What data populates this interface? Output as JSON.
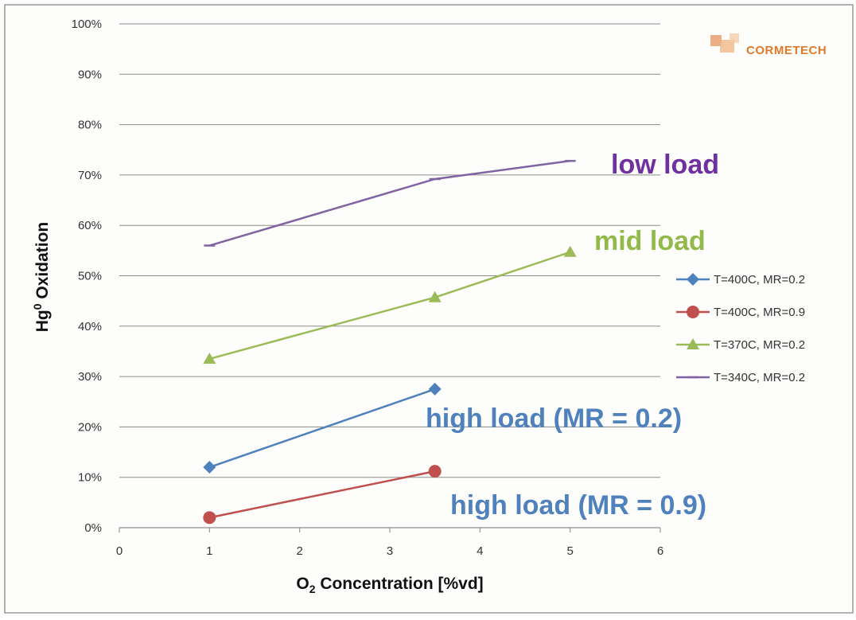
{
  "logo": {
    "text": "CORMETECH",
    "color": "#e07a2a"
  },
  "chart_data": {
    "type": "line",
    "title": "",
    "xlabel": {
      "prefix": "O",
      "sub": "2",
      "suffix": " Concentration [%vd]"
    },
    "ylabel": {
      "prefix": "Hg",
      "sup": "0",
      "suffix": " Oxidation"
    },
    "xlim": [
      0,
      6
    ],
    "ylim": [
      0,
      100
    ],
    "x_ticks": [
      0,
      1,
      2,
      3,
      4,
      5,
      6
    ],
    "y_ticks": [
      0,
      10,
      20,
      30,
      40,
      50,
      60,
      70,
      80,
      90,
      100
    ],
    "y_tick_format": "percent",
    "grid": {
      "horizontal": true,
      "vertical": false
    },
    "legend_position": "right",
    "series": [
      {
        "name": "T=400C, MR=0.2",
        "marker": "diamond",
        "color": "#4f81bd",
        "x": [
          1,
          3.5
        ],
        "y": [
          12,
          27.5
        ]
      },
      {
        "name": "T=400C, MR=0.9",
        "marker": "circle",
        "color": "#c0504d",
        "x": [
          1,
          3.5
        ],
        "y": [
          2,
          11.2
        ]
      },
      {
        "name": "T=370C, MR=0.2",
        "marker": "triangle",
        "color": "#9bbb59",
        "x": [
          1,
          3.5,
          5
        ],
        "y": [
          33.5,
          45.7,
          54.7
        ]
      },
      {
        "name": "T=340C, MR=0.2",
        "marker": "dash",
        "color": "#8064a2",
        "x": [
          1,
          3.5,
          5
        ],
        "y": [
          56,
          69.2,
          72.8
        ]
      }
    ],
    "annotations": [
      {
        "text": "low load",
        "color": "#7030a0"
      },
      {
        "text": "mid load",
        "color": "#92b94a"
      },
      {
        "text": "high load (MR = 0.2)",
        "color": "#4f81bd"
      },
      {
        "text": "high load (MR = 0.9)",
        "color": "#4f81bd"
      }
    ]
  }
}
